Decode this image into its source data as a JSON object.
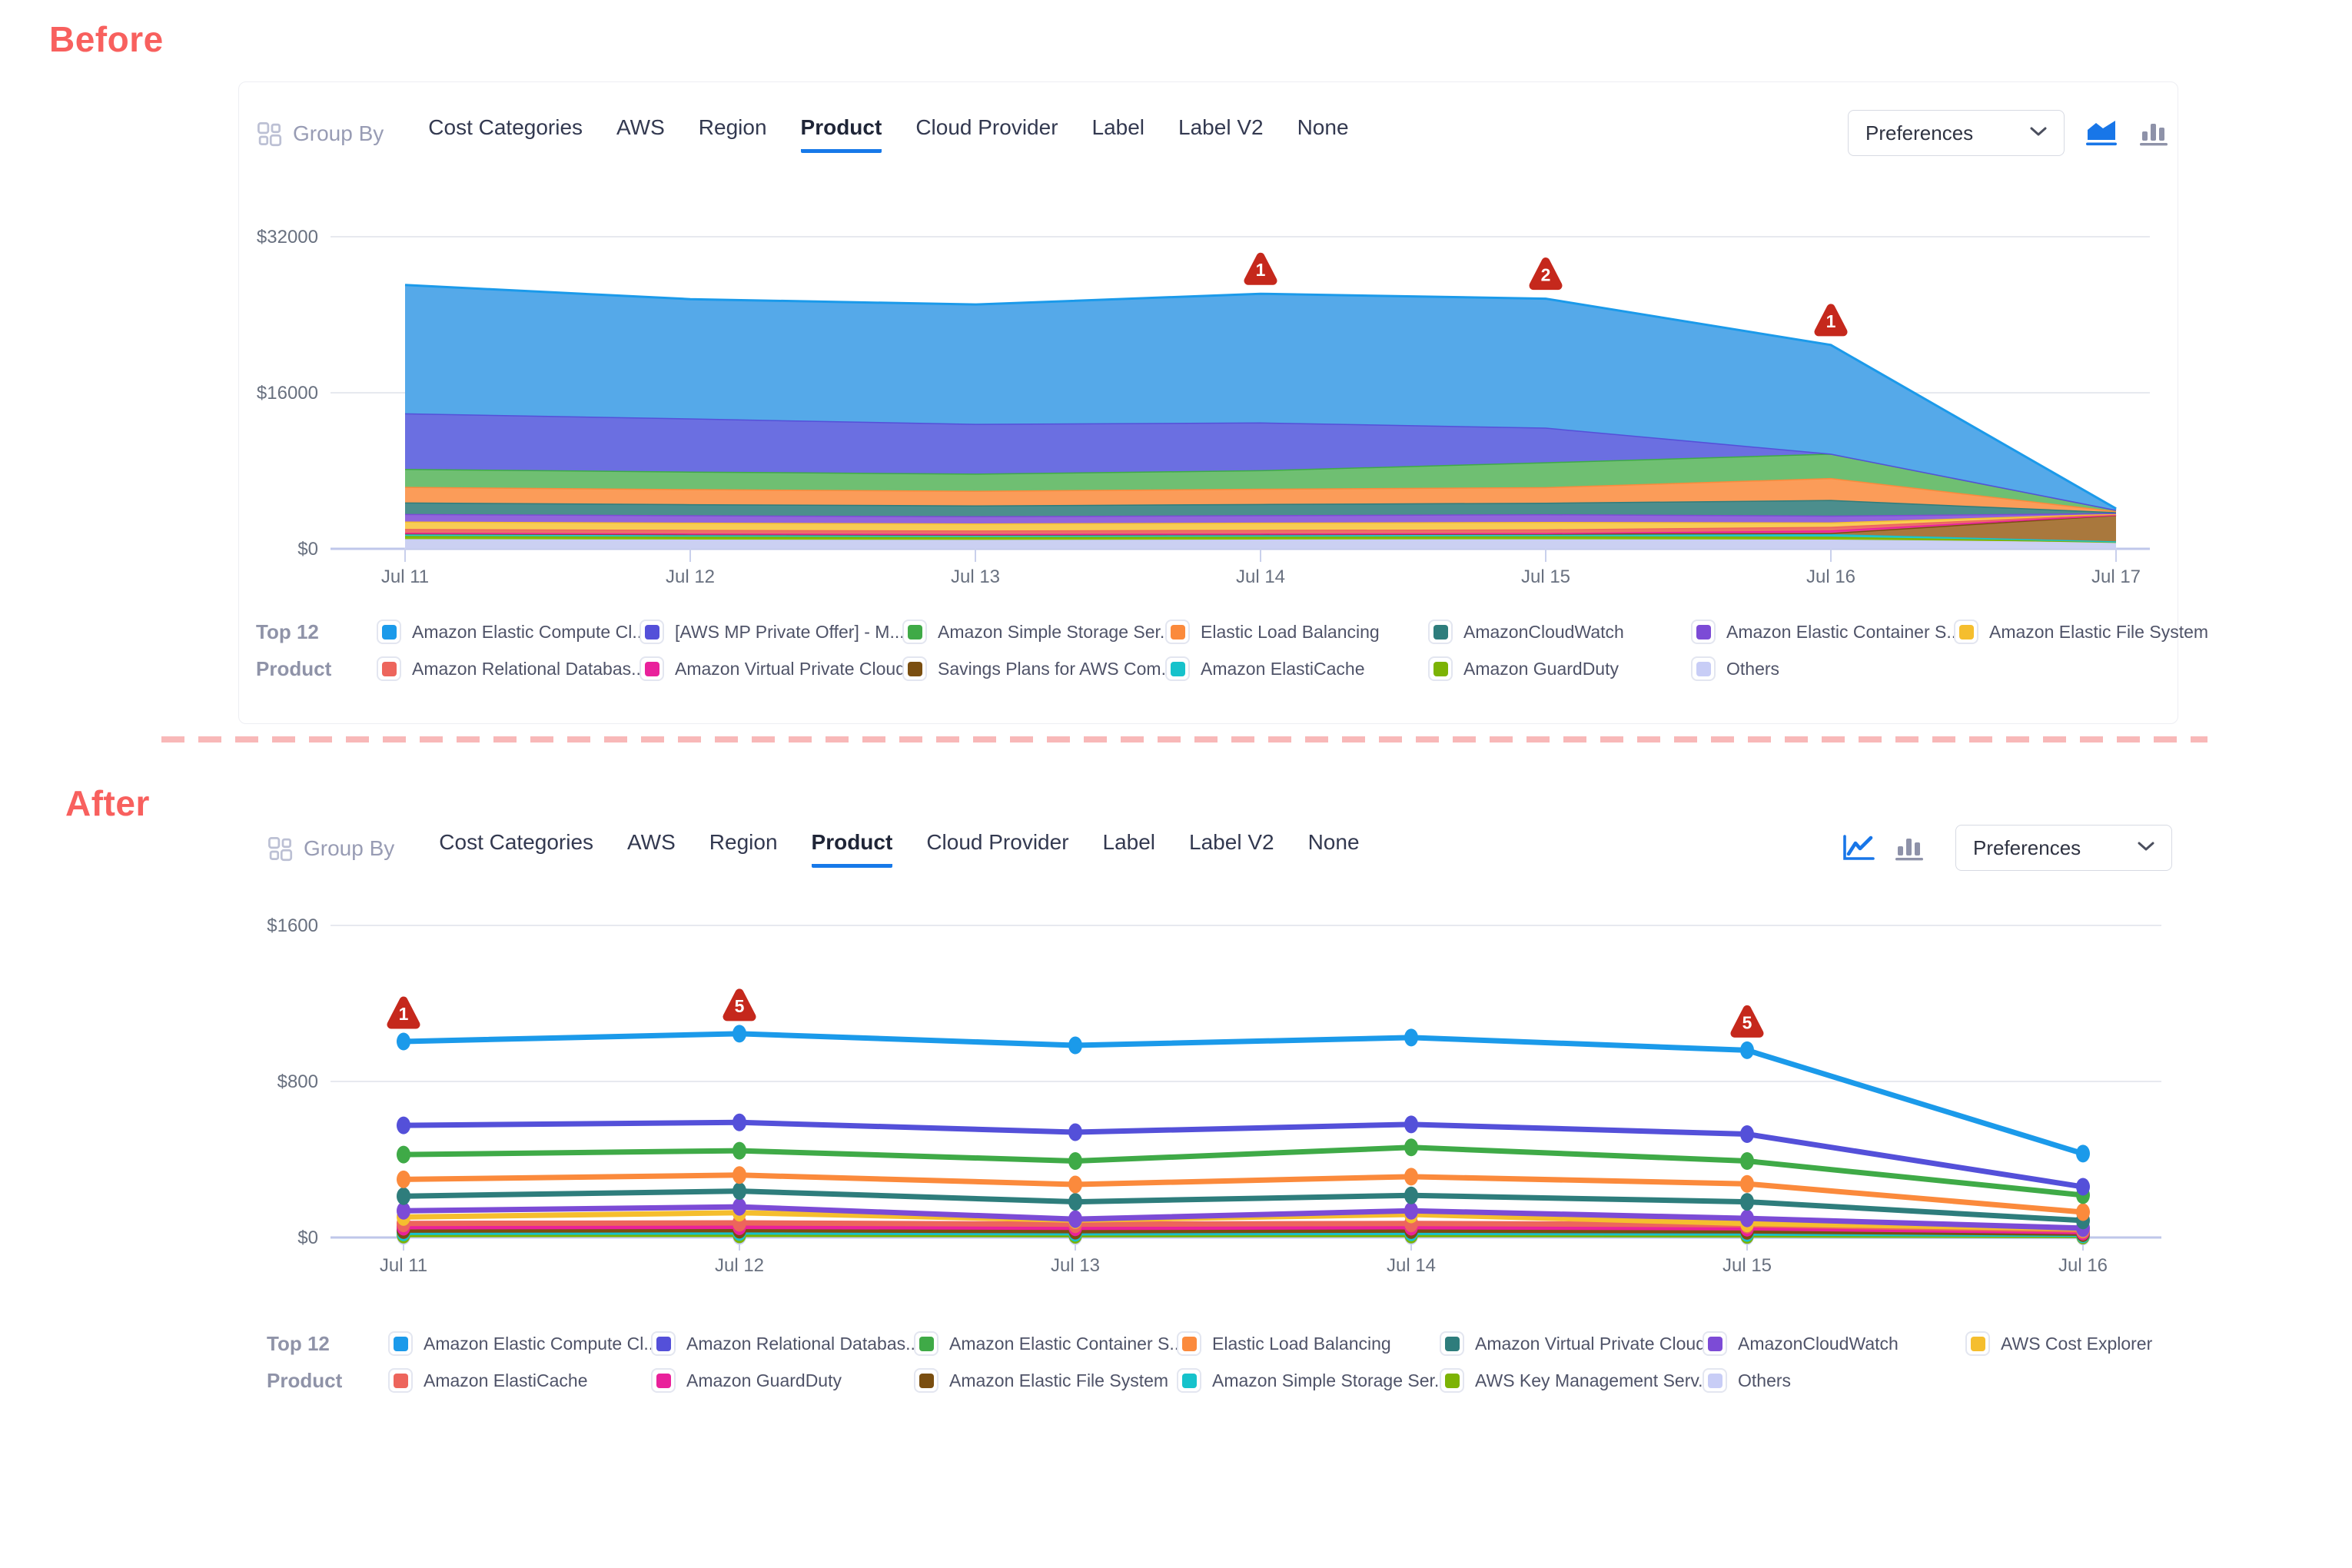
{
  "page": {
    "before_label": "Before",
    "after_label": "After"
  },
  "toolbar": {
    "group_by_label": "Group By",
    "tabs": [
      "Cost Categories",
      "AWS",
      "Region",
      "Product",
      "Cloud Provider",
      "Label",
      "Label V2",
      "None"
    ],
    "active_tab": "Product",
    "preferences_label": "Preferences"
  },
  "legend_title": {
    "line1": "Top 12",
    "line2": "Product"
  },
  "colors": {
    "accent_blue": "#1779E9",
    "title_red": "#F8605E",
    "divider_pink": "#F8B8B8",
    "marker_red": "#C5281C",
    "grid_line": "#E7E9EF",
    "axis_line": "#BFC7EA",
    "tick_stub": "#C9D0EC",
    "tick_label": "#68707F",
    "icon_gray": "#8E92A9"
  },
  "chart_data": [
    {
      "panel": "before",
      "type": "area",
      "stacked": true,
      "title": "",
      "xlabel": "",
      "ylabel": "",
      "grid": true,
      "legend_position": "bottom",
      "x": [
        "Jul 11",
        "Jul 12",
        "Jul 13",
        "Jul 14",
        "Jul 15",
        "Jul 16",
        "Jul 17"
      ],
      "y_ticks": [
        "$0",
        "$16000",
        "$32000"
      ],
      "y_tick_values": [
        0,
        16000,
        32000
      ],
      "ylim": [
        0,
        32000
      ],
      "series": [
        {
          "name": "Amazon Elastic Compute Cl...",
          "color": "#1B9AEA",
          "fill": "#55A9E9",
          "values": [
            13150,
            12225,
            12235,
            13185,
            13220,
            11140,
            120
          ]
        },
        {
          "name": "[AWS MP Private Offer] - M...",
          "color": "#5450D9",
          "fill": "#6B6FE1",
          "values": [
            5700,
            5450,
            5100,
            4900,
            3550,
            0,
            0
          ]
        },
        {
          "name": "Amazon Simple Storage Ser...",
          "color": "#3FAA47",
          "fill": "#6FBF72",
          "values": [
            1850,
            1800,
            1760,
            1900,
            2550,
            2500,
            130
          ]
        },
        {
          "name": "Elastic Load Balancing",
          "color": "#FB8A3C",
          "fill": "#FB9C59",
          "values": [
            1590,
            1540,
            1500,
            1560,
            1600,
            2250,
            110
          ]
        },
        {
          "name": "AmazonCloudWatch",
          "color": "#2E7D7C",
          "fill": "#4C8E8D",
          "values": [
            1180,
            1140,
            1110,
            1150,
            1180,
            1600,
            90
          ]
        },
        {
          "name": "Amazon Elastic Container S...",
          "color": "#7C4BD6",
          "fill": "#9165DB",
          "values": [
            780,
            760,
            740,
            770,
            790,
            700,
            60
          ]
        },
        {
          "name": "Amazon Elastic File System",
          "color": "#F5BE2E",
          "fill": "#F8CC55",
          "values": [
            760,
            740,
            720,
            740,
            760,
            450,
            50
          ]
        },
        {
          "name": "Amazon Relational Databas...",
          "color": "#ED655C",
          "fill": "#ED7168",
          "values": [
            390,
            375,
            365,
            375,
            385,
            380,
            60
          ]
        },
        {
          "name": "Amazon Virtual Private Cloud",
          "color": "#E9219B",
          "fill": "#EA3D9D",
          "values": [
            60,
            60,
            60,
            60,
            60,
            250,
            30
          ]
        },
        {
          "name": "Savings Plans for AWS Com...",
          "color": "#7A4E10",
          "fill": "#A9783D",
          "values": [
            0,
            0,
            0,
            0,
            0,
            120,
            2700
          ]
        },
        {
          "name": "Amazon ElastiCache",
          "color": "#16C2CB",
          "fill": "#25C9CF",
          "values": [
            270,
            260,
            250,
            260,
            265,
            260,
            50
          ]
        },
        {
          "name": "Amazon GuardDuty",
          "color": "#7CB305",
          "fill": "#86BC0A",
          "values": [
            320,
            300,
            290,
            300,
            310,
            300,
            40
          ]
        },
        {
          "name": "Others",
          "color": "#C8CDF6",
          "fill": "#CBD0F2",
          "values": [
            1000,
            950,
            920,
            950,
            980,
            950,
            680
          ]
        }
      ],
      "markers": [
        {
          "x": "Jul 14",
          "label": "1"
        },
        {
          "x": "Jul 15",
          "label": "2"
        },
        {
          "x": "Jul 16",
          "label": "1"
        }
      ]
    },
    {
      "panel": "after",
      "type": "line",
      "stacked": false,
      "title": "",
      "xlabel": "",
      "ylabel": "",
      "grid": true,
      "legend_position": "bottom",
      "x": [
        "Jul 11",
        "Jul 12",
        "Jul 13",
        "Jul 14",
        "Jul 15",
        "Jul 16"
      ],
      "y_ticks": [
        "$0",
        "$800",
        "$1600"
      ],
      "y_tick_values": [
        0,
        800,
        1600
      ],
      "ylim": [
        0,
        1600
      ],
      "series": [
        {
          "name": "Amazon Elastic Compute Cl...",
          "color": "#1B9AEA",
          "values": [
            1005,
            1045,
            985,
            1025,
            960,
            430
          ]
        },
        {
          "name": "Amazon Relational Databas...",
          "color": "#5450D9",
          "values": [
            575,
            590,
            540,
            580,
            530,
            260
          ]
        },
        {
          "name": "Amazon Elastic Container S...",
          "color": "#3FAA47",
          "values": [
            425,
            445,
            392,
            462,
            392,
            217
          ]
        },
        {
          "name": "Elastic Load Balancing",
          "color": "#FB8A3C",
          "values": [
            298,
            320,
            272,
            312,
            275,
            130
          ]
        },
        {
          "name": "Amazon Virtual Private Cloud",
          "color": "#2E7D7C",
          "values": [
            212,
            238,
            183,
            216,
            183,
            87
          ]
        },
        {
          "name": "AmazonCloudWatch",
          "color": "#7C4BD6",
          "values": [
            137,
            157,
            94,
            137,
            98,
            48
          ]
        },
        {
          "name": "AWS Cost Explorer",
          "color": "#F5BE2E",
          "values": [
            105,
            127,
            89,
            118,
            72,
            45
          ]
        },
        {
          "name": "Amazon ElastiCache",
          "color": "#ED655C",
          "values": [
            72,
            75,
            68,
            72,
            65,
            38
          ]
        },
        {
          "name": "Amazon GuardDuty",
          "color": "#E9219B",
          "values": [
            55,
            57,
            52,
            55,
            50,
            30
          ]
        },
        {
          "name": "Amazon Elastic File System",
          "color": "#7A4E10",
          "values": [
            38,
            40,
            35,
            38,
            34,
            22
          ]
        },
        {
          "name": "Amazon Simple Storage Ser...",
          "color": "#16C2CB",
          "values": [
            26,
            28,
            24,
            26,
            23,
            16
          ]
        },
        {
          "name": "AWS Key Management Serv...",
          "color": "#7CB305",
          "values": [
            15,
            16,
            14,
            15,
            13,
            10
          ]
        },
        {
          "name": "Others",
          "color": "#C8CDF6",
          "values": [
            8,
            8,
            7,
            8,
            7,
            5
          ]
        }
      ],
      "markers": [
        {
          "x": "Jul 11",
          "label": "1"
        },
        {
          "x": "Jul 12",
          "label": "5"
        },
        {
          "x": "Jul 15",
          "label": "5"
        }
      ]
    }
  ]
}
